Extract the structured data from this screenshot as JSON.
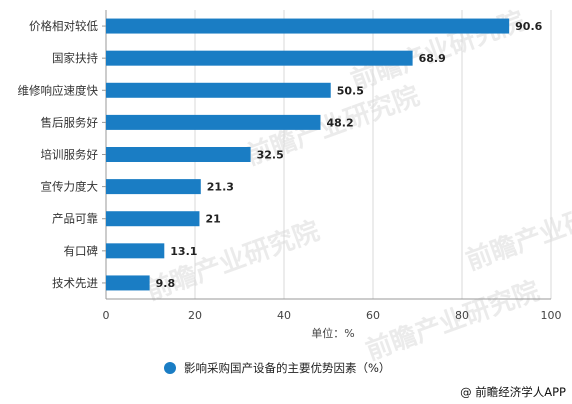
{
  "chart_data": {
    "type": "bar",
    "orientation": "horizontal",
    "categories": [
      "价格相对较低",
      "国家扶持",
      "维修响应速度快",
      "售后服务好",
      "培训服务好",
      "宣传力度大",
      "产品可靠",
      "有口碑",
      "技术先进"
    ],
    "series": [
      {
        "name": "影响采购国产设备的主要优势因素（%）",
        "values": [
          90.6,
          68.9,
          50.5,
          48.2,
          32.5,
          21.3,
          21,
          13.1,
          9.8
        ]
      }
    ],
    "value_labels": [
      "90.6",
      "68.9",
      "50.5",
      "48.2",
      "32.5",
      "21.3",
      "21",
      "13.1",
      "9.8"
    ],
    "xlim": [
      0,
      100
    ],
    "xticks": [
      0,
      20,
      40,
      60,
      80,
      100
    ],
    "xlabel": "单位：%",
    "ylabel": "",
    "title": "",
    "grid": "vertical",
    "legend_position": "bottom",
    "bar_color": "#1a7dc4"
  },
  "source": "@ 前瞻经济学人APP",
  "watermark": "前瞻产业研究院"
}
